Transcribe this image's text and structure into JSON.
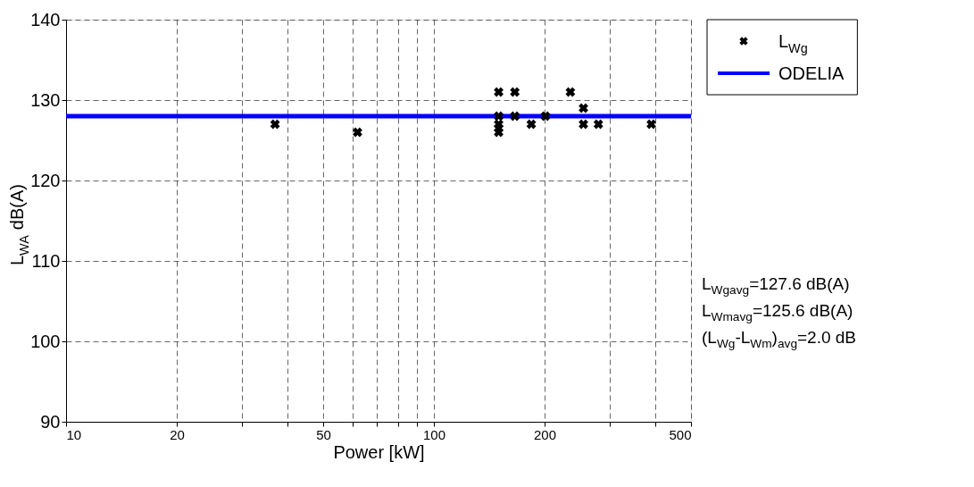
{
  "chart_data": {
    "type": "scatter",
    "xlabel": "Power [kW]",
    "ylabel": "L$_{WA}$ dB(A)",
    "log": "x",
    "grid": true,
    "legend": "top right",
    "xlim": [
      10,
      500
    ],
    "ylim": [
      90,
      140
    ],
    "xticks": [
      10,
      20,
      {
        "value": 30,
        "label": null
      },
      {
        "value": 40,
        "label": null
      },
      50,
      {
        "value": 60,
        "label": null
      },
      {
        "value": 70,
        "label": null
      },
      {
        "value": 80,
        "label": null
      },
      {
        "value": 90,
        "label": null
      },
      100,
      200,
      {
        "value": 300,
        "label": null
      },
      {
        "value": 400,
        "label": null
      },
      500
    ],
    "yticks": [
      90,
      100,
      110,
      120,
      130,
      140
    ],
    "series": [
      {
        "name": "L$_{Wg}$",
        "color": "#000000",
        "marker": "cross",
        "x": [
          37,
          62,
          150,
          150,
          150,
          150,
          150,
          166,
          166,
          184,
          201,
          235,
          255,
          255,
          280,
          390
        ],
        "values": [
          127,
          126,
          131,
          128,
          127,
          126.5,
          126,
          131,
          128,
          127,
          128,
          131,
          129,
          127,
          127,
          127
        ]
      },
      {
        "name": "ODELIA",
        "type": "line",
        "color": "#0000ff",
        "marker": "none",
        "x": [
          10,
          500
        ],
        "values": [
          128,
          128
        ]
      }
    ],
    "annotations": [
      "L$_{Wgavg}$=127.6 dB(A)",
      "L$_{Wmavg}$=125.6 dB(A)",
      "(L$_{Wg}$-L$_{Wm}$)$_{avg}$=2.0 dB"
    ]
  }
}
